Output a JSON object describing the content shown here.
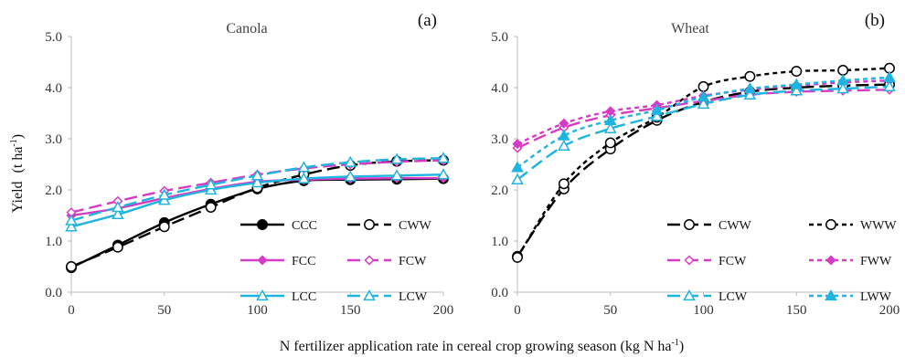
{
  "figure": {
    "ylabel": "Yield",
    "ylabel_unit_base": "(t ha",
    "ylabel_unit_sup": "-1",
    "ylabel_unit_close": ")",
    "xlabel_base": "N fertilizer  application rate in cereal crop growing season (kg N ha",
    "xlabel_sup": "-1",
    "xlabel_close": ")"
  },
  "chart_data": [
    {
      "type": "line",
      "title": "Canola",
      "tag": "(a)",
      "x": [
        0,
        25,
        50,
        75,
        100,
        125,
        150,
        175,
        200
      ],
      "xticks": [
        "0",
        "50",
        "100",
        "150",
        "200"
      ],
      "xlim": [
        0,
        200
      ],
      "yticks": [
        "0.0",
        "1.0",
        "2.0",
        "3.0",
        "4.0",
        "5.0"
      ],
      "ylim": [
        0,
        5
      ],
      "grid": false,
      "legend_position": "lower-right",
      "series": [
        {
          "name": "CCC",
          "values": [
            0.48,
            0.92,
            1.36,
            1.72,
            2.02,
            2.18,
            2.2,
            2.21,
            2.22
          ],
          "color": "#000000",
          "dash": "solid",
          "marker": "circle-filled"
        },
        {
          "name": "CWW",
          "values": [
            0.5,
            0.88,
            1.28,
            1.66,
            2.04,
            2.3,
            2.48,
            2.56,
            2.58
          ],
          "color": "#000000",
          "dash": "longdash",
          "marker": "circle-open"
        },
        {
          "name": "FCC",
          "values": [
            1.5,
            1.64,
            1.84,
            2.02,
            2.16,
            2.2,
            2.22,
            2.23,
            2.23
          ],
          "color": "#d63bc4",
          "dash": "solid",
          "marker": "diamond-filled"
        },
        {
          "name": "FCW",
          "values": [
            1.56,
            1.78,
            1.98,
            2.14,
            2.3,
            2.42,
            2.5,
            2.55,
            2.58
          ],
          "color": "#d63bc4",
          "dash": "longdash",
          "marker": "diamond-open"
        },
        {
          "name": "LCC",
          "values": [
            1.28,
            1.52,
            1.8,
            2.0,
            2.14,
            2.22,
            2.26,
            2.28,
            2.3
          ],
          "color": "#1fb3e0",
          "dash": "solid",
          "marker": "triangle-open"
        },
        {
          "name": "LCW",
          "values": [
            1.4,
            1.66,
            1.9,
            2.1,
            2.28,
            2.44,
            2.54,
            2.6,
            2.62
          ],
          "color": "#1fb3e0",
          "dash": "longdash",
          "marker": "triangle-open"
        }
      ]
    },
    {
      "type": "line",
      "title": "Wheat",
      "tag": "(b)",
      "x": [
        0,
        25,
        50,
        75,
        100,
        125,
        150,
        175,
        200
      ],
      "xticks": [
        "0",
        "50",
        "100",
        "150",
        "200"
      ],
      "xlim": [
        0,
        200
      ],
      "yticks": [
        "0.0",
        "1.0",
        "2.0",
        "3.0",
        "4.0",
        "5.0"
      ],
      "ylim": [
        0,
        5
      ],
      "grid": false,
      "legend_position": "lower-right",
      "series": [
        {
          "name": "CWW",
          "values": [
            0.7,
            2.02,
            2.8,
            3.36,
            3.72,
            3.92,
            4.0,
            4.04,
            4.06
          ],
          "color": "#000000",
          "dash": "longdash",
          "marker": "circle-open"
        },
        {
          "name": "WWW",
          "values": [
            0.68,
            2.12,
            2.92,
            3.42,
            4.02,
            4.22,
            4.32,
            4.34,
            4.38
          ],
          "color": "#000000",
          "dash": "shortdash",
          "marker": "circle-open"
        },
        {
          "name": "FCW",
          "values": [
            2.82,
            3.22,
            3.46,
            3.6,
            3.74,
            3.86,
            3.92,
            3.94,
            3.96
          ],
          "color": "#d63bc4",
          "dash": "longdash",
          "marker": "diamond-open"
        },
        {
          "name": "FWW",
          "values": [
            2.9,
            3.3,
            3.54,
            3.66,
            3.84,
            3.96,
            4.04,
            4.1,
            4.14
          ],
          "color": "#d63bc4",
          "dash": "shortdash",
          "marker": "diamond-filled"
        },
        {
          "name": "LCW",
          "values": [
            2.2,
            2.86,
            3.2,
            3.44,
            3.68,
            3.86,
            3.94,
            3.98,
            4.02
          ],
          "color": "#1fb3e0",
          "dash": "longdash",
          "marker": "triangle-open"
        },
        {
          "name": "LWW",
          "values": [
            2.44,
            3.06,
            3.36,
            3.56,
            3.82,
            3.98,
            4.06,
            4.14,
            4.2
          ],
          "color": "#1fb3e0",
          "dash": "shortdash",
          "marker": "triangle-filled"
        }
      ]
    }
  ]
}
